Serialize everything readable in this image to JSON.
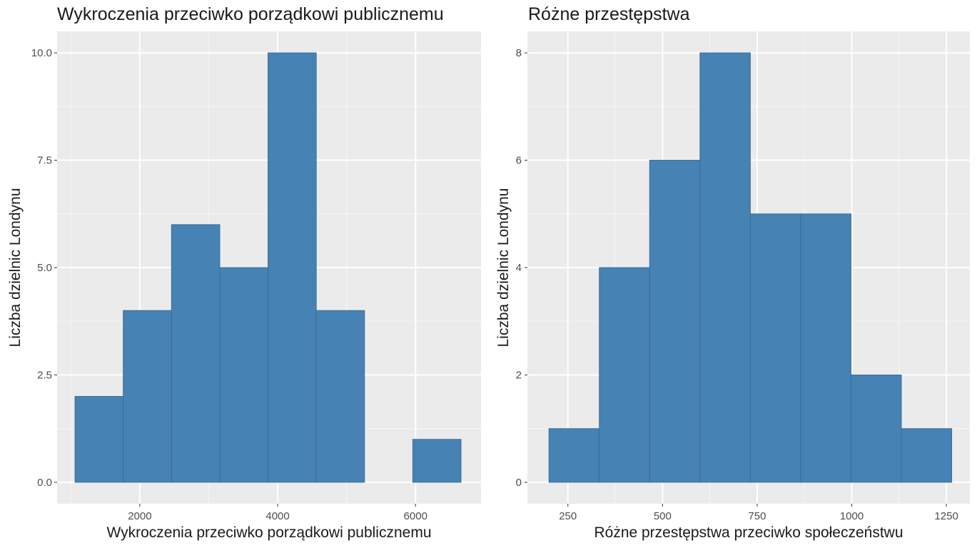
{
  "chart_data": [
    {
      "type": "bar",
      "title": "Wykroczenia przeciwko porządkowi publicznemu",
      "xlabel": "Wykroczenia przeciwko porządkowi publicznemu",
      "ylabel": "Liczba dzielnic Londynu",
      "xlim": [
        800,
        6950
      ],
      "ylim": [
        -0.5,
        10.5
      ],
      "xticks": [
        2000,
        4000,
        6000
      ],
      "xtick_labels": [
        "2000",
        "4000",
        "6000"
      ],
      "yticks": [
        0,
        2.5,
        5,
        7.5,
        10
      ],
      "ytick_labels": [
        "0.0",
        "2.5",
        "5.0",
        "7.5",
        "10.0"
      ],
      "grid": true,
      "bins": [
        {
          "x0": 1060,
          "x1": 1760,
          "count": 2
        },
        {
          "x0": 1760,
          "x1": 2460,
          "count": 4
        },
        {
          "x0": 2460,
          "x1": 3160,
          "count": 6
        },
        {
          "x0": 3160,
          "x1": 3860,
          "count": 5
        },
        {
          "x0": 3860,
          "x1": 4560,
          "count": 10
        },
        {
          "x0": 4560,
          "x1": 5260,
          "count": 4
        },
        {
          "x0": 5260,
          "x1": 5960,
          "count": 0
        },
        {
          "x0": 5960,
          "x1": 6660,
          "count": 1
        }
      ],
      "fill_color": "#4682b4",
      "panel_color": "#ebebeb"
    },
    {
      "type": "bar",
      "title": "Różne przestępstwa",
      "xlabel": "Różne przestępstwa przeciwko społeczeństwu",
      "ylabel": "Liczba dzielnic Londynu",
      "xlim": [
        143,
        1312
      ],
      "ylim": [
        -0.4,
        8.4
      ],
      "xticks": [
        250,
        500,
        750,
        1000,
        1250
      ],
      "xtick_labels": [
        "250",
        "500",
        "750",
        "1000",
        "1250"
      ],
      "yticks": [
        0,
        2,
        4,
        6,
        8
      ],
      "ytick_labels": [
        "0",
        "2",
        "4",
        "6",
        "8"
      ],
      "grid": true,
      "bins": [
        {
          "x0": 200,
          "x1": 333,
          "count": 1
        },
        {
          "x0": 333,
          "x1": 466,
          "count": 4
        },
        {
          "x0": 466,
          "x1": 599,
          "count": 6
        },
        {
          "x0": 599,
          "x1": 732,
          "count": 8
        },
        {
          "x0": 732,
          "x1": 865,
          "count": 5
        },
        {
          "x0": 865,
          "x1": 998,
          "count": 5
        },
        {
          "x0": 998,
          "x1": 1131,
          "count": 2
        },
        {
          "x0": 1131,
          "x1": 1264,
          "count": 1
        }
      ],
      "fill_color": "#4682b4",
      "panel_color": "#ebebeb"
    }
  ]
}
